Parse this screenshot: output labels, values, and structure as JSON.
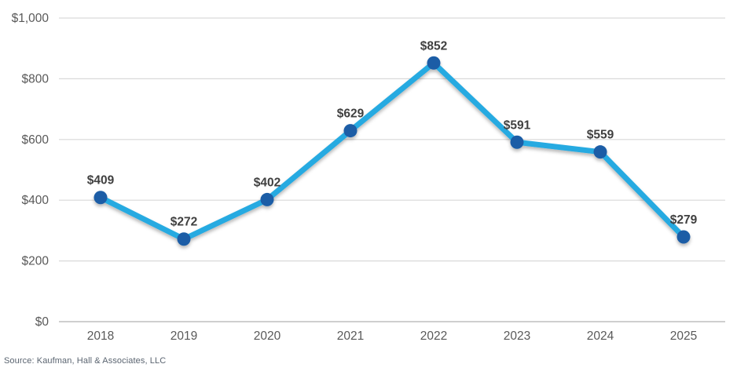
{
  "chart_data": {
    "type": "line",
    "title": "",
    "xlabel": "",
    "ylabel": "",
    "categories": [
      "2018",
      "2019",
      "2020",
      "2021",
      "2022",
      "2023",
      "2024",
      "2025"
    ],
    "values": [
      409,
      272,
      402,
      629,
      852,
      591,
      559,
      279
    ],
    "point_labels": [
      "$409",
      "$272",
      "$402",
      "$629",
      "$852",
      "$591",
      "$559",
      "$279"
    ],
    "y_ticks": [
      {
        "value": 0,
        "label": "$0"
      },
      {
        "value": 200,
        "label": "$200"
      },
      {
        "value": 400,
        "label": "$400"
      },
      {
        "value": 600,
        "label": "$600"
      },
      {
        "value": 800,
        "label": "$800"
      },
      {
        "value": 1000,
        "label": "$1,000"
      }
    ],
    "ylim": [
      0,
      1000
    ],
    "grid": true,
    "legend_position": "none",
    "colors": {
      "line": "#27AAE1",
      "marker": "#1A5DA6",
      "point_label_text": "#3F3F3F",
      "axis_tick_text": "#595959",
      "gridline": "#D9D9D9",
      "axis_line": "#BFBFBF"
    }
  },
  "source_note": "Source: Kaufman, Hall & Associates, LLC"
}
